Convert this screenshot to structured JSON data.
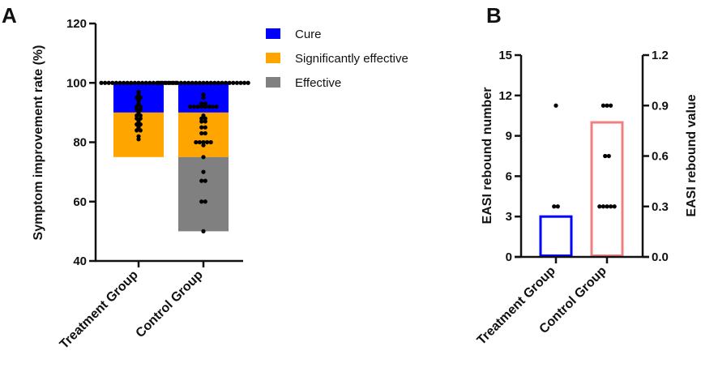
{
  "panels": {
    "a": "A",
    "b": "B"
  },
  "chart_data": [
    {
      "type": "bar",
      "stacked": true,
      "ylabel": "Symptom improvement rate (%)",
      "ylim": [
        40,
        120
      ],
      "yticks": [
        "40",
        "60",
        "80",
        "100",
        "120"
      ],
      "categories": [
        "Treatment Group",
        "Control Group"
      ],
      "legend_position": "top-right",
      "series": [
        {
          "name": "Cure",
          "color": "#0000FF",
          "ranges": [
            [
              90,
              100
            ],
            [
              90,
              100
            ]
          ]
        },
        {
          "name": "Significantly effective",
          "color": "#FFA500",
          "ranges": [
            [
              75,
              90
            ],
            [
              75,
              90
            ]
          ]
        },
        {
          "name": "Effective",
          "color": "#808080",
          "ranges": [
            null,
            [
              50,
              75
            ]
          ]
        }
      ],
      "points": [
        [
          100,
          100,
          100,
          100,
          100,
          100,
          100,
          100,
          100,
          100,
          100,
          100,
          100,
          100,
          100,
          100,
          100,
          100,
          100,
          100,
          100,
          97,
          96,
          95,
          95,
          94,
          93,
          92,
          92,
          91,
          91,
          90,
          89,
          89,
          88,
          88,
          87,
          86,
          86,
          85,
          84,
          84,
          82,
          81
        ],
        [
          100,
          100,
          100,
          100,
          100,
          100,
          100,
          100,
          100,
          100,
          100,
          100,
          100,
          100,
          100,
          100,
          100,
          100,
          100,
          100,
          100,
          100,
          100,
          100,
          100,
          96,
          95,
          93,
          93,
          92,
          92,
          92,
          92,
          92,
          92,
          92,
          92,
          89,
          88,
          88,
          87,
          87,
          85,
          85,
          83,
          83,
          80,
          80,
          80,
          80,
          80,
          79,
          75,
          70,
          67,
          67,
          60,
          60,
          50
        ]
      ]
    },
    {
      "type": "bar",
      "categories": [
        "Treatment Group",
        "Control Group"
      ],
      "ylabel": "EASI rebound number",
      "ylim": [
        0,
        15
      ],
      "yticks": [
        "0",
        "3",
        "6",
        "9",
        "12",
        "15"
      ],
      "y2label": "EASI rebound value",
      "y2lim": [
        0,
        1.2
      ],
      "y2ticks": [
        "0.0",
        "0.3",
        "0.6",
        "0.9",
        "1.2"
      ],
      "bars": [
        {
          "category": "Treatment Group",
          "value": 3,
          "color": "#0000FF"
        },
        {
          "category": "Control Group",
          "value": 10,
          "color": "#F08080"
        }
      ],
      "points_right_axis": [
        [
          0.9,
          0.3,
          0.3
        ],
        [
          0.9,
          0.9,
          0.9,
          0.6,
          0.6,
          0.3,
          0.3,
          0.3,
          0.3,
          0.3
        ]
      ]
    }
  ]
}
